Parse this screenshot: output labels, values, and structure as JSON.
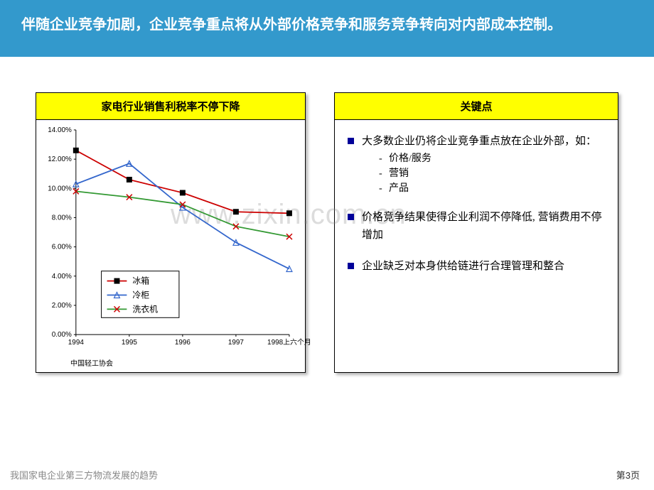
{
  "header": {
    "title": "伴随企业竞争加剧，企业竞争重点将从外部价格竞争和服务竞争转向对内部成本控制。"
  },
  "chart": {
    "title": "家电行业销售利税率不停下降",
    "type": "line",
    "categories": [
      "1994",
      "1995",
      "1996",
      "1997",
      "1998上六个月"
    ],
    "series": [
      {
        "name": "冰箱",
        "values": [
          12.6,
          10.6,
          9.7,
          8.4,
          8.3
        ],
        "color": "#cc0000",
        "marker": "square",
        "marker_color": "#000000"
      },
      {
        "name": "冷柜",
        "values": [
          10.3,
          11.7,
          8.7,
          6.3,
          4.5
        ],
        "color": "#3366cc",
        "marker": "triangle",
        "marker_color": "#3366cc"
      },
      {
        "name": "洗衣机",
        "values": [
          9.8,
          9.4,
          8.9,
          7.4,
          6.7
        ],
        "color": "#339933",
        "marker": "x",
        "marker_color": "#cc0000"
      }
    ],
    "ylabel_format": "percent",
    "ylim": [
      0,
      14
    ],
    "ytick_step": 2,
    "ytick_labels": [
      "0.00%",
      "2.00%",
      "4.00%",
      "6.00%",
      "8.00%",
      "10.00%",
      "12.00%",
      "14.00%"
    ],
    "background_color": "#ffffff",
    "axis_color": "#000000",
    "tick_fontsize": 10,
    "legend_position": "inside-bottom-left",
    "source": "中国轻工协会"
  },
  "keypoints": {
    "title": "关键点",
    "items": [
      {
        "text": "大多数企业仍将企业竞争重点放在企业外部，如：",
        "sub": [
          "价格/服务",
          "营销",
          "产品"
        ]
      },
      {
        "text": "价格竞争结果使得企业利润不停降低, 营销费用不停增加",
        "sub": []
      },
      {
        "text": "企业缺乏对本身供给链进行合理管理和整合",
        "sub": []
      }
    ]
  },
  "watermark": "www.zixin.com.cn",
  "footer": {
    "left": "我国家电企业第三方物流发展的趋势",
    "right": "第3页"
  }
}
